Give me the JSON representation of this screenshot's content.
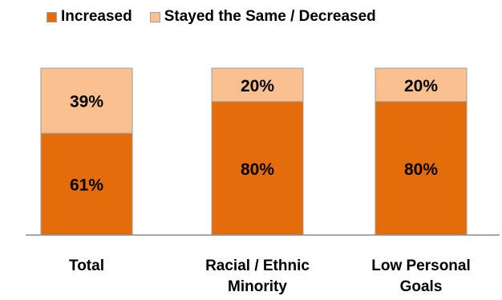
{
  "chart_data": {
    "type": "bar",
    "stacked": true,
    "categories": [
      "Total",
      "Racial / Ethnic Minority",
      "Low Personal Goals"
    ],
    "category_lines": [
      [
        "Total"
      ],
      [
        "Racial / Ethnic",
        "Minority"
      ],
      [
        "Low Personal",
        "Goals"
      ]
    ],
    "series": [
      {
        "name": "Increased",
        "values": [
          61,
          80,
          80
        ],
        "labels": [
          "61%",
          "80%",
          "80%"
        ],
        "color": "#E46C0A"
      },
      {
        "name": "Stayed the Same / Decreased",
        "values": [
          39,
          20,
          20
        ],
        "labels": [
          "39%",
          "20%",
          "20%"
        ],
        "color": "#FAC090"
      }
    ],
    "ylim": [
      0,
      100
    ],
    "grid": false,
    "legend_position": "top"
  }
}
